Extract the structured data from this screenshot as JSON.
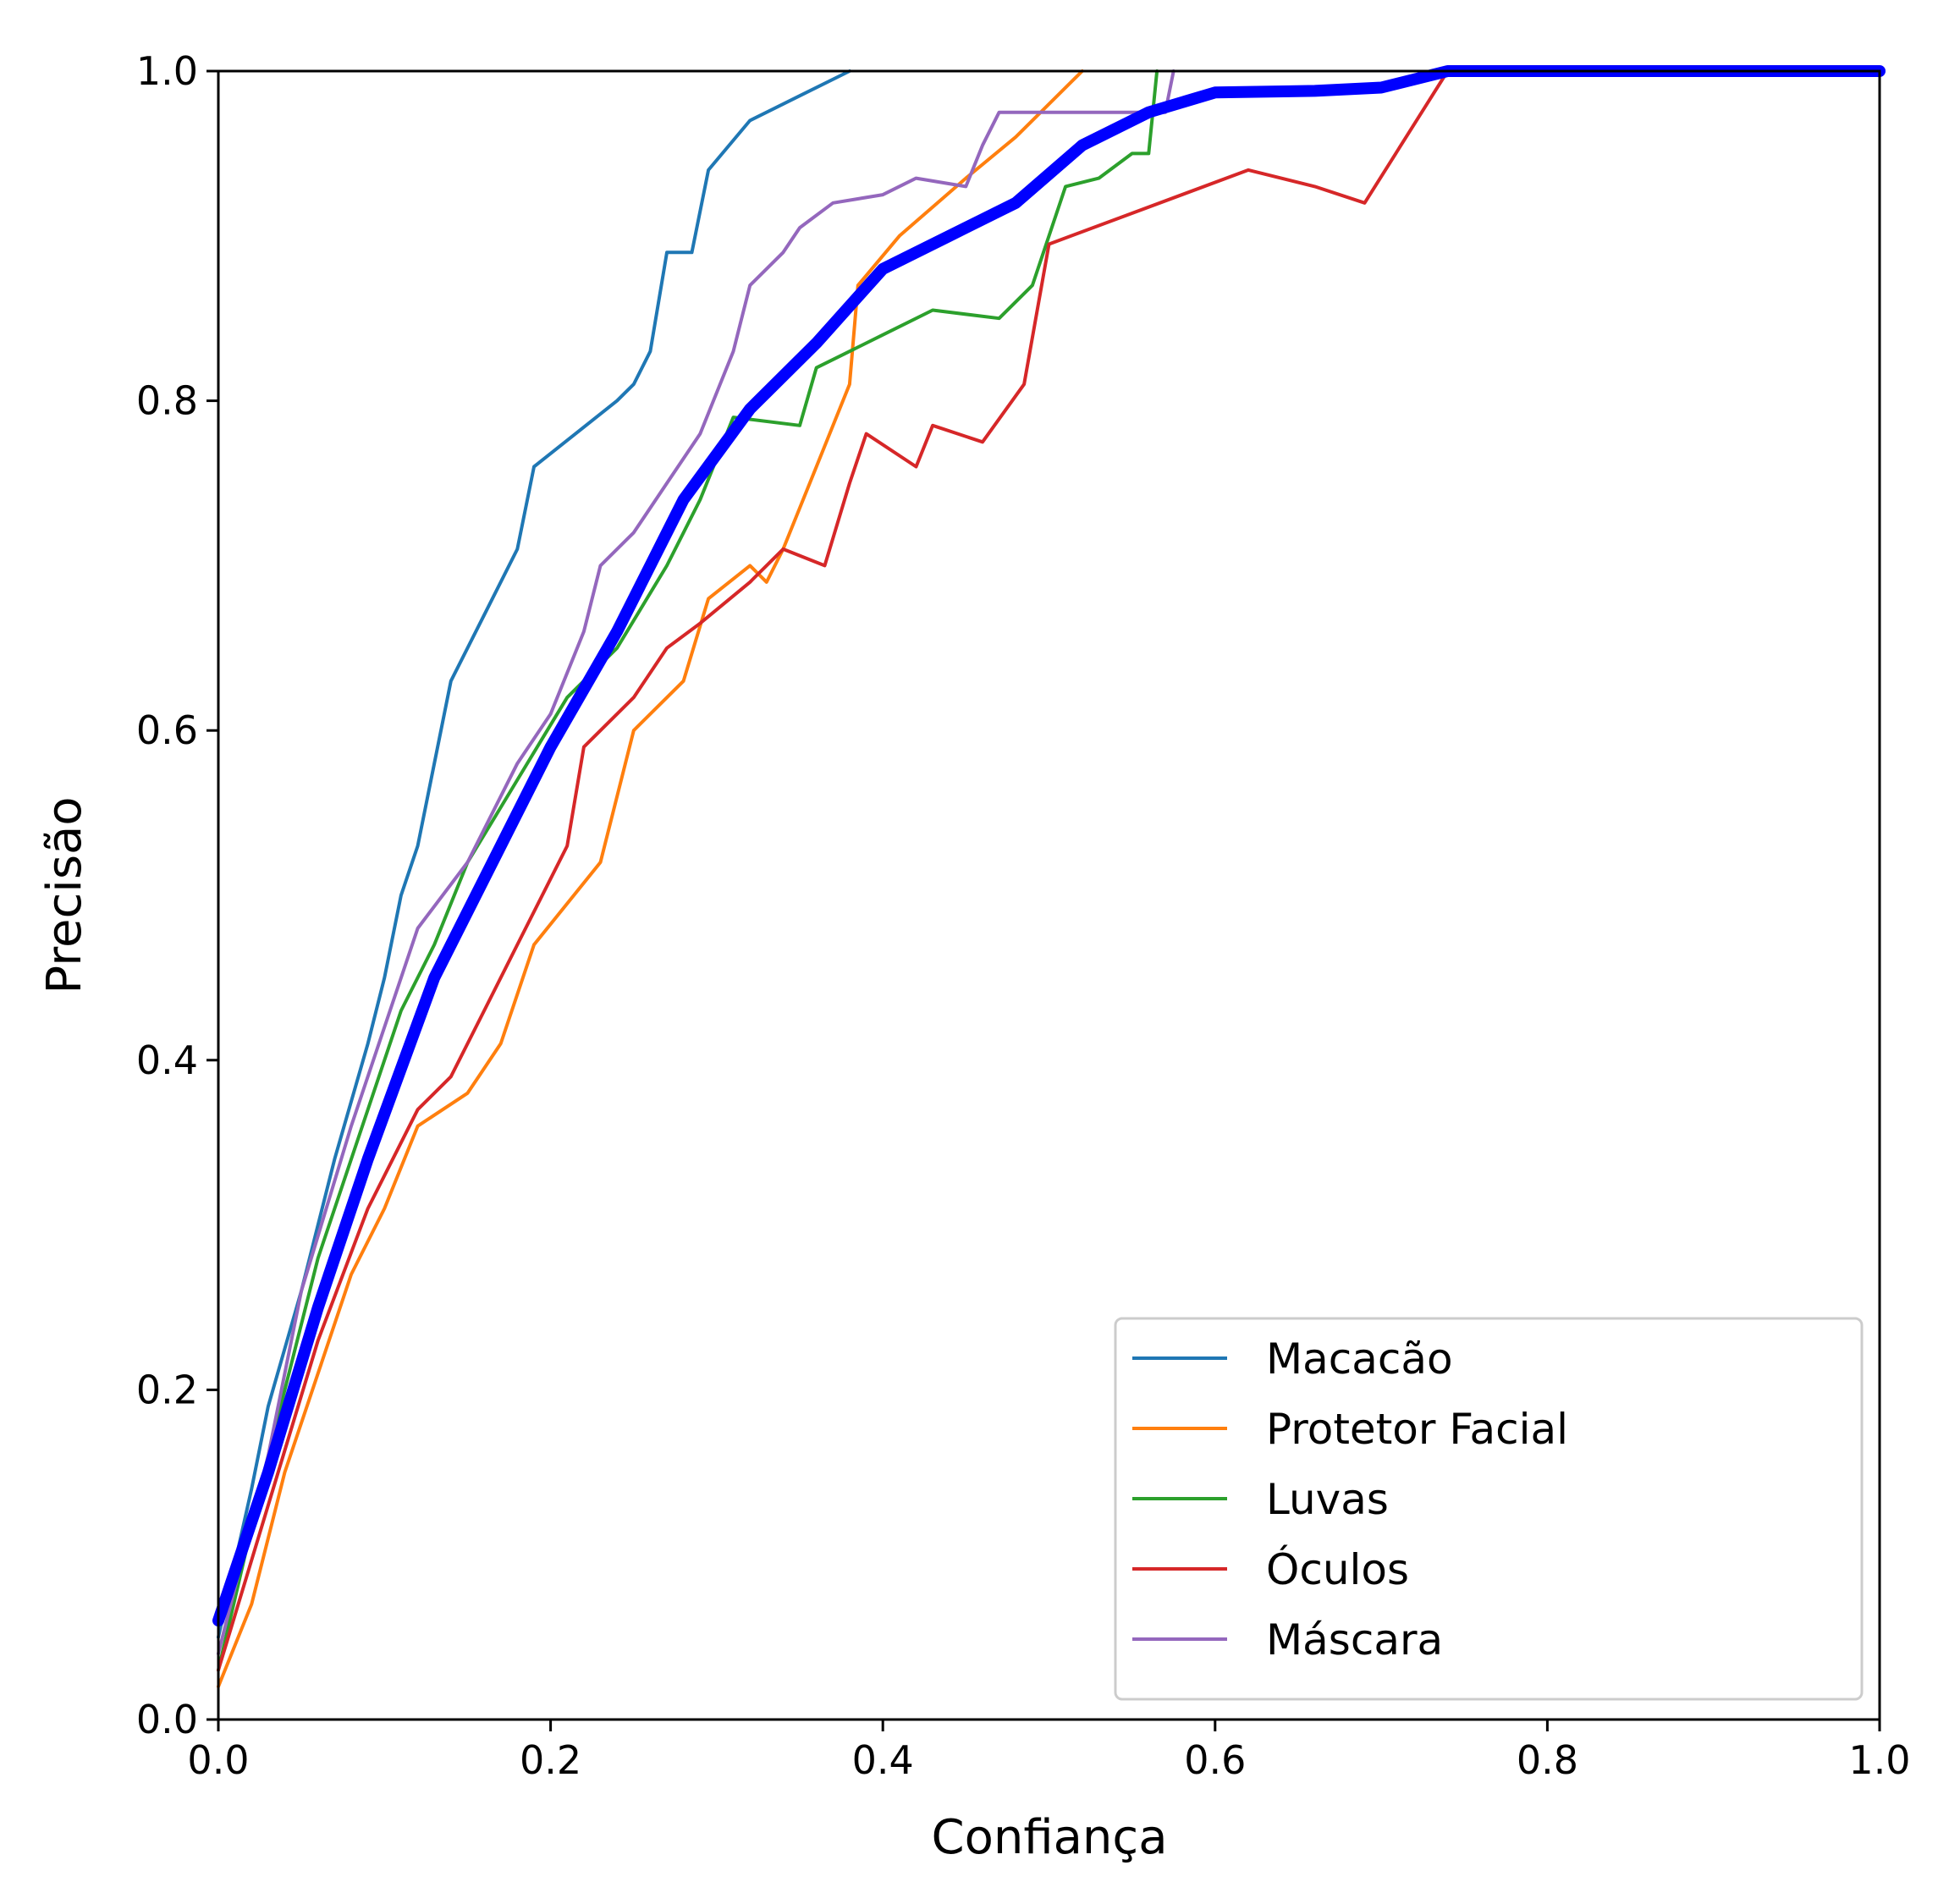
{
  "chart_data": {
    "type": "line",
    "xlabel": "Confiança",
    "ylabel": "Precisão",
    "xlim": [
      0,
      1
    ],
    "ylim": [
      0,
      1
    ],
    "x_ticks": [
      "0.0",
      "0.2",
      "0.4",
      "0.6",
      "0.8",
      "1.0"
    ],
    "y_ticks": [
      "0.0",
      "0.2",
      "0.4",
      "0.6",
      "0.8",
      "1.0"
    ],
    "grid": false,
    "legend_position": "lower-right",
    "series": [
      {
        "name": "Macacão",
        "color": "#1f77b4",
        "points": [
          [
            0,
            0.05
          ],
          [
            0.02,
            0.14
          ],
          [
            0.03,
            0.19
          ],
          [
            0.05,
            0.26
          ],
          [
            0.07,
            0.34
          ],
          [
            0.09,
            0.41
          ],
          [
            0.1,
            0.45
          ],
          [
            0.11,
            0.5
          ],
          [
            0.12,
            0.53
          ],
          [
            0.13,
            0.58
          ],
          [
            0.14,
            0.63
          ],
          [
            0.16,
            0.67
          ],
          [
            0.18,
            0.71
          ],
          [
            0.19,
            0.76
          ],
          [
            0.24,
            0.8
          ],
          [
            0.25,
            0.81
          ],
          [
            0.26,
            0.83
          ],
          [
            0.27,
            0.89
          ],
          [
            0.285,
            0.89
          ],
          [
            0.295,
            0.94
          ],
          [
            0.32,
            0.97
          ],
          [
            0.35,
            0.985
          ],
          [
            0.38,
            1.0
          ]
        ]
      },
      {
        "name": "Protetor Facial",
        "color": "#ff7f0e",
        "points": [
          [
            0,
            0.02
          ],
          [
            0.02,
            0.07
          ],
          [
            0.04,
            0.15
          ],
          [
            0.06,
            0.21
          ],
          [
            0.08,
            0.27
          ],
          [
            0.1,
            0.31
          ],
          [
            0.12,
            0.36
          ],
          [
            0.15,
            0.38
          ],
          [
            0.17,
            0.41
          ],
          [
            0.19,
            0.47
          ],
          [
            0.23,
            0.52
          ],
          [
            0.25,
            0.6
          ],
          [
            0.28,
            0.63
          ],
          [
            0.295,
            0.68
          ],
          [
            0.32,
            0.7
          ],
          [
            0.33,
            0.69
          ],
          [
            0.34,
            0.71
          ],
          [
            0.36,
            0.76
          ],
          [
            0.38,
            0.81
          ],
          [
            0.385,
            0.87
          ],
          [
            0.41,
            0.9
          ],
          [
            0.45,
            0.935
          ],
          [
            0.48,
            0.96
          ],
          [
            0.52,
            1.0
          ]
        ]
      },
      {
        "name": "Luvas",
        "color": "#2ca02c",
        "points": [
          [
            0,
            0.03
          ],
          [
            0.03,
            0.16
          ],
          [
            0.06,
            0.28
          ],
          [
            0.09,
            0.37
          ],
          [
            0.11,
            0.43
          ],
          [
            0.13,
            0.47
          ],
          [
            0.15,
            0.52
          ],
          [
            0.18,
            0.57
          ],
          [
            0.21,
            0.62
          ],
          [
            0.24,
            0.65
          ],
          [
            0.27,
            0.7
          ],
          [
            0.29,
            0.74
          ],
          [
            0.31,
            0.79
          ],
          [
            0.35,
            0.785
          ],
          [
            0.36,
            0.82
          ],
          [
            0.38,
            0.83
          ],
          [
            0.4,
            0.84
          ],
          [
            0.43,
            0.855
          ],
          [
            0.47,
            0.85
          ],
          [
            0.49,
            0.87
          ],
          [
            0.51,
            0.93
          ],
          [
            0.53,
            0.935
          ],
          [
            0.55,
            0.95
          ],
          [
            0.56,
            0.95
          ],
          [
            0.565,
            1.0
          ]
        ]
      },
      {
        "name": "Óculos",
        "color": "#d62728",
        "points": [
          [
            0,
            0.03
          ],
          [
            0.03,
            0.13
          ],
          [
            0.06,
            0.23
          ],
          [
            0.09,
            0.31
          ],
          [
            0.12,
            0.37
          ],
          [
            0.14,
            0.39
          ],
          [
            0.16,
            0.43
          ],
          [
            0.18,
            0.47
          ],
          [
            0.21,
            0.53
          ],
          [
            0.22,
            0.59
          ],
          [
            0.25,
            0.62
          ],
          [
            0.27,
            0.65
          ],
          [
            0.29,
            0.665
          ],
          [
            0.32,
            0.69
          ],
          [
            0.34,
            0.71
          ],
          [
            0.365,
            0.7
          ],
          [
            0.38,
            0.75
          ],
          [
            0.39,
            0.78
          ],
          [
            0.42,
            0.76
          ],
          [
            0.43,
            0.785
          ],
          [
            0.46,
            0.775
          ],
          [
            0.485,
            0.81
          ],
          [
            0.5,
            0.895
          ],
          [
            0.62,
            0.94
          ],
          [
            0.66,
            0.93
          ],
          [
            0.69,
            0.92
          ],
          [
            0.74,
            1.0
          ],
          [
            1.0,
            1.0
          ]
        ]
      },
      {
        "name": "Máscara",
        "color": "#9467bd",
        "points": [
          [
            0,
            0.04
          ],
          [
            0.03,
            0.16
          ],
          [
            0.05,
            0.26
          ],
          [
            0.08,
            0.36
          ],
          [
            0.1,
            0.42
          ],
          [
            0.12,
            0.48
          ],
          [
            0.15,
            0.52
          ],
          [
            0.18,
            0.58
          ],
          [
            0.2,
            0.61
          ],
          [
            0.22,
            0.66
          ],
          [
            0.23,
            0.7
          ],
          [
            0.25,
            0.72
          ],
          [
            0.27,
            0.75
          ],
          [
            0.29,
            0.78
          ],
          [
            0.31,
            0.83
          ],
          [
            0.32,
            0.87
          ],
          [
            0.34,
            0.89
          ],
          [
            0.35,
            0.905
          ],
          [
            0.37,
            0.92
          ],
          [
            0.4,
            0.925
          ],
          [
            0.42,
            0.935
          ],
          [
            0.45,
            0.93
          ],
          [
            0.46,
            0.955
          ],
          [
            0.47,
            0.975
          ],
          [
            0.54,
            0.975
          ],
          [
            0.57,
            0.975
          ],
          [
            0.575,
            1.0
          ]
        ]
      },
      {
        "name": "",
        "color": "#0000ff",
        "thick": true,
        "points": [
          [
            0,
            0.06
          ],
          [
            0.03,
            0.15
          ],
          [
            0.06,
            0.25
          ],
          [
            0.09,
            0.34
          ],
          [
            0.13,
            0.45
          ],
          [
            0.16,
            0.51
          ],
          [
            0.2,
            0.59
          ],
          [
            0.24,
            0.66
          ],
          [
            0.28,
            0.74
          ],
          [
            0.32,
            0.795
          ],
          [
            0.36,
            0.835
          ],
          [
            0.4,
            0.88
          ],
          [
            0.44,
            0.9
          ],
          [
            0.48,
            0.92
          ],
          [
            0.52,
            0.955
          ],
          [
            0.56,
            0.975
          ],
          [
            0.6,
            0.987
          ],
          [
            0.66,
            0.988
          ],
          [
            0.7,
            0.99
          ],
          [
            0.74,
            1.0
          ],
          [
            1.0,
            1.0
          ]
        ]
      }
    ],
    "legend": [
      "Macacão",
      "Protetor Facial",
      "Luvas",
      "Óculos",
      "Máscara"
    ]
  }
}
